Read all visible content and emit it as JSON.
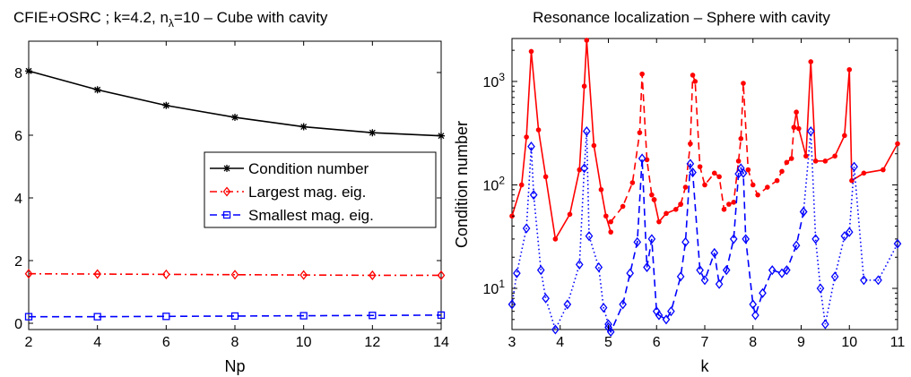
{
  "chart_data": [
    {
      "type": "line",
      "title_main": "CFIE+OSRC ; k=4.2, n",
      "title_sub": "λ",
      "title_rest": "=10 – Cube with cavity",
      "xlabel": "Np",
      "ylabel": "",
      "xlim": [
        2,
        14
      ],
      "ylim": [
        -0.2,
        9
      ],
      "x_ticks": [
        2,
        4,
        6,
        8,
        10,
        12,
        14
      ],
      "y_ticks": [
        0,
        2,
        4,
        6,
        8
      ],
      "x": [
        2,
        4,
        6,
        8,
        10,
        12,
        14
      ],
      "series": [
        {
          "name": "Condition number",
          "color": "#000000",
          "marker": "star",
          "dash": "solid",
          "values": [
            8.05,
            7.45,
            6.95,
            6.57,
            6.27,
            6.08,
            5.98
          ]
        },
        {
          "name": "Largest mag. eig.",
          "color": "#ff0000",
          "marker": "diamond",
          "dash": "dashdot",
          "values": [
            1.58,
            1.57,
            1.56,
            1.55,
            1.54,
            1.53,
            1.53
          ]
        },
        {
          "name": "Smallest mag. eig.",
          "color": "#0000ff",
          "marker": "square",
          "dash": "dashed",
          "values": [
            0.21,
            0.21,
            0.22,
            0.23,
            0.24,
            0.25,
            0.26
          ]
        }
      ],
      "legend_position": "right",
      "grid": false
    },
    {
      "type": "line",
      "title": "Resonance localization – Sphere with cavity",
      "xlabel": "k",
      "ylabel": "Condition number",
      "xlim": [
        3,
        11
      ],
      "ylim": [
        4,
        2600
      ],
      "y_scale": "log",
      "x_ticks": [
        3,
        4,
        5,
        6,
        7,
        8,
        9,
        10,
        11
      ],
      "y_ticks": [
        10,
        100,
        1000
      ],
      "y_tick_labels": [
        {
          "base": "10",
          "exp": "1"
        },
        {
          "base": "10",
          "exp": "2"
        },
        {
          "base": "10",
          "exp": "3"
        }
      ],
      "grid": false,
      "series": [
        {
          "color": "#ff0000",
          "marker": "dot",
          "dash": "solid",
          "points": [
            [
              3.0,
              50
            ],
            [
              3.2,
              100
            ],
            [
              3.3,
              290
            ],
            [
              3.4,
              1950
            ],
            [
              3.55,
              340
            ],
            [
              3.7,
              120
            ],
            [
              3.9,
              30
            ],
            [
              4.2,
              52
            ],
            [
              4.4,
              140
            ],
            [
              4.5,
              900
            ],
            [
              4.55,
              2500
            ],
            [
              4.7,
              240
            ],
            [
              4.85,
              90
            ],
            [
              4.95,
              50
            ],
            [
              5.05,
              35
            ]
          ]
        },
        {
          "color": "#ff0000",
          "marker": "dot",
          "dash": "dashed",
          "points": [
            [
              5.05,
              44
            ],
            [
              5.3,
              62
            ],
            [
              5.5,
              105
            ],
            [
              5.65,
              320
            ],
            [
              5.7,
              1180
            ],
            [
              5.8,
              175
            ],
            [
              5.9,
              80
            ],
            [
              5.95,
              72
            ]
          ]
        },
        {
          "color": "#ff0000",
          "marker": "dot",
          "dash": "solid",
          "points": [
            [
              5.95,
              72
            ],
            [
              6.05,
              44
            ],
            [
              6.2,
              53
            ],
            [
              6.4,
              58
            ],
            [
              6.5,
              65
            ]
          ]
        },
        {
          "color": "#ff0000",
          "marker": "dot",
          "dash": "dashed",
          "points": [
            [
              6.5,
              65
            ],
            [
              6.6,
              95
            ],
            [
              6.7,
              250
            ],
            [
              6.75,
              1150
            ],
            [
              6.8,
              1000
            ],
            [
              6.9,
              150
            ],
            [
              7.0,
              100
            ],
            [
              7.2,
              130
            ],
            [
              7.3,
              120
            ],
            [
              7.4,
              58
            ],
            [
              7.5,
              65
            ],
            [
              7.6,
              68
            ],
            [
              7.7,
              170
            ],
            [
              7.75,
              280
            ],
            [
              7.8,
              960
            ],
            [
              7.9,
              140
            ],
            [
              8.0,
              100
            ],
            [
              8.1,
              80
            ],
            [
              8.3,
              95
            ],
            [
              8.5,
              110
            ],
            [
              8.6,
              135
            ],
            [
              8.7,
              165
            ],
            [
              8.8,
              180
            ],
            [
              8.85,
              360
            ]
          ]
        },
        {
          "color": "#ff0000",
          "marker": "dot",
          "dash": "solid",
          "points": [
            [
              8.85,
              360
            ],
            [
              8.9,
              505
            ],
            [
              8.95,
              350
            ],
            [
              9.1,
              190
            ],
            [
              9.2,
              1550
            ],
            [
              9.3,
              170
            ],
            [
              9.5,
              170
            ],
            [
              9.7,
              190
            ],
            [
              9.9,
              300
            ],
            [
              10.0,
              1300
            ],
            [
              10.05,
              110
            ],
            [
              10.3,
              130
            ],
            [
              10.7,
              140
            ],
            [
              11.0,
              250
            ]
          ]
        },
        {
          "color": "#0000ff",
          "marker": "diamond",
          "dash": "dotted",
          "points": [
            [
              3.0,
              7
            ],
            [
              3.1,
              14
            ],
            [
              3.3,
              38
            ],
            [
              3.4,
              235
            ],
            [
              3.45,
              80
            ],
            [
              3.6,
              15
            ],
            [
              3.7,
              8
            ],
            [
              3.9,
              4
            ],
            [
              4.15,
              7
            ],
            [
              4.4,
              17
            ],
            [
              4.5,
              145
            ],
            [
              4.55,
              330
            ],
            [
              4.6,
              32
            ],
            [
              4.8,
              16
            ],
            [
              4.9,
              6.5
            ],
            [
              5.0,
              4.5
            ]
          ]
        },
        {
          "color": "#0000ff",
          "marker": "diamond",
          "dash": "dashed",
          "points": [
            [
              5.0,
              4.2
            ],
            [
              5.05,
              3.8
            ],
            [
              5.3,
              7
            ],
            [
              5.45,
              14
            ],
            [
              5.6,
              28
            ],
            [
              5.7,
              180
            ],
            [
              5.8,
              16
            ],
            [
              5.9,
              30
            ],
            [
              6.0,
              6
            ],
            [
              6.05,
              5.5
            ],
            [
              6.2,
              5
            ],
            [
              6.3,
              6
            ],
            [
              6.5,
              13
            ],
            [
              6.6,
              28
            ],
            [
              6.7,
              160
            ],
            [
              6.75,
              132
            ],
            [
              6.9,
              15
            ],
            [
              7.0,
              12
            ],
            [
              7.2,
              22
            ],
            [
              7.3,
              11
            ],
            [
              7.45,
              15
            ],
            [
              7.6,
              30
            ],
            [
              7.7,
              128
            ],
            [
              7.75,
              145
            ],
            [
              7.8,
              130
            ],
            [
              7.85,
              30
            ],
            [
              8.0,
              7
            ],
            [
              8.05,
              5.5
            ],
            [
              8.2,
              9
            ],
            [
              8.4,
              15
            ],
            [
              8.6,
              14
            ],
            [
              8.7,
              15
            ],
            [
              8.9,
              26
            ],
            [
              9.05,
              55
            ]
          ]
        },
        {
          "color": "#0000ff",
          "marker": "diamond",
          "dash": "dotted",
          "points": [
            [
              9.05,
              55
            ],
            [
              9.2,
              330
            ],
            [
              9.3,
              30
            ],
            [
              9.4,
              10
            ],
            [
              9.5,
              4.5
            ],
            [
              9.7,
              13
            ],
            [
              9.9,
              32
            ],
            [
              10.0,
              35
            ],
            [
              10.1,
              150
            ],
            [
              10.3,
              12
            ],
            [
              10.6,
              12
            ],
            [
              11.0,
              27
            ]
          ]
        }
      ]
    }
  ]
}
